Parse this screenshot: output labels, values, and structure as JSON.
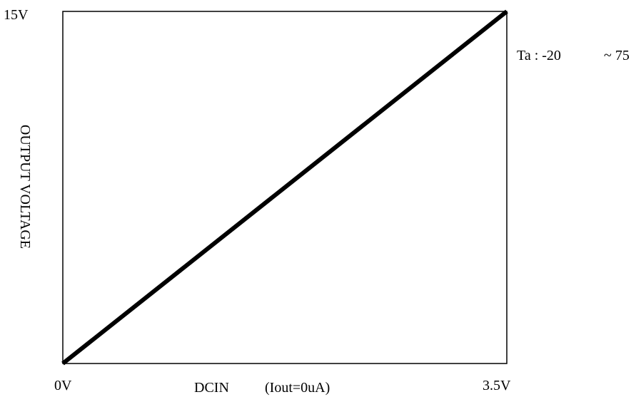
{
  "chart_data": {
    "type": "line",
    "title": "",
    "xlabel": "DCIN",
    "xlabel_note": "(Iout=0uA)",
    "ylabel": "OUTPUT VOLTAGE",
    "x_ticks": [
      "0V",
      "3.5V"
    ],
    "y_ticks": [
      "15V"
    ],
    "xlim": [
      0,
      3.5
    ],
    "ylim": [
      0,
      15
    ],
    "grid": false,
    "annotation": "Ta : -20",
    "annotation_suffix": "~ 75",
    "series": [
      {
        "x": [
          0,
          3.5
        ],
        "y": [
          0,
          15
        ],
        "color": "#000000"
      }
    ]
  }
}
